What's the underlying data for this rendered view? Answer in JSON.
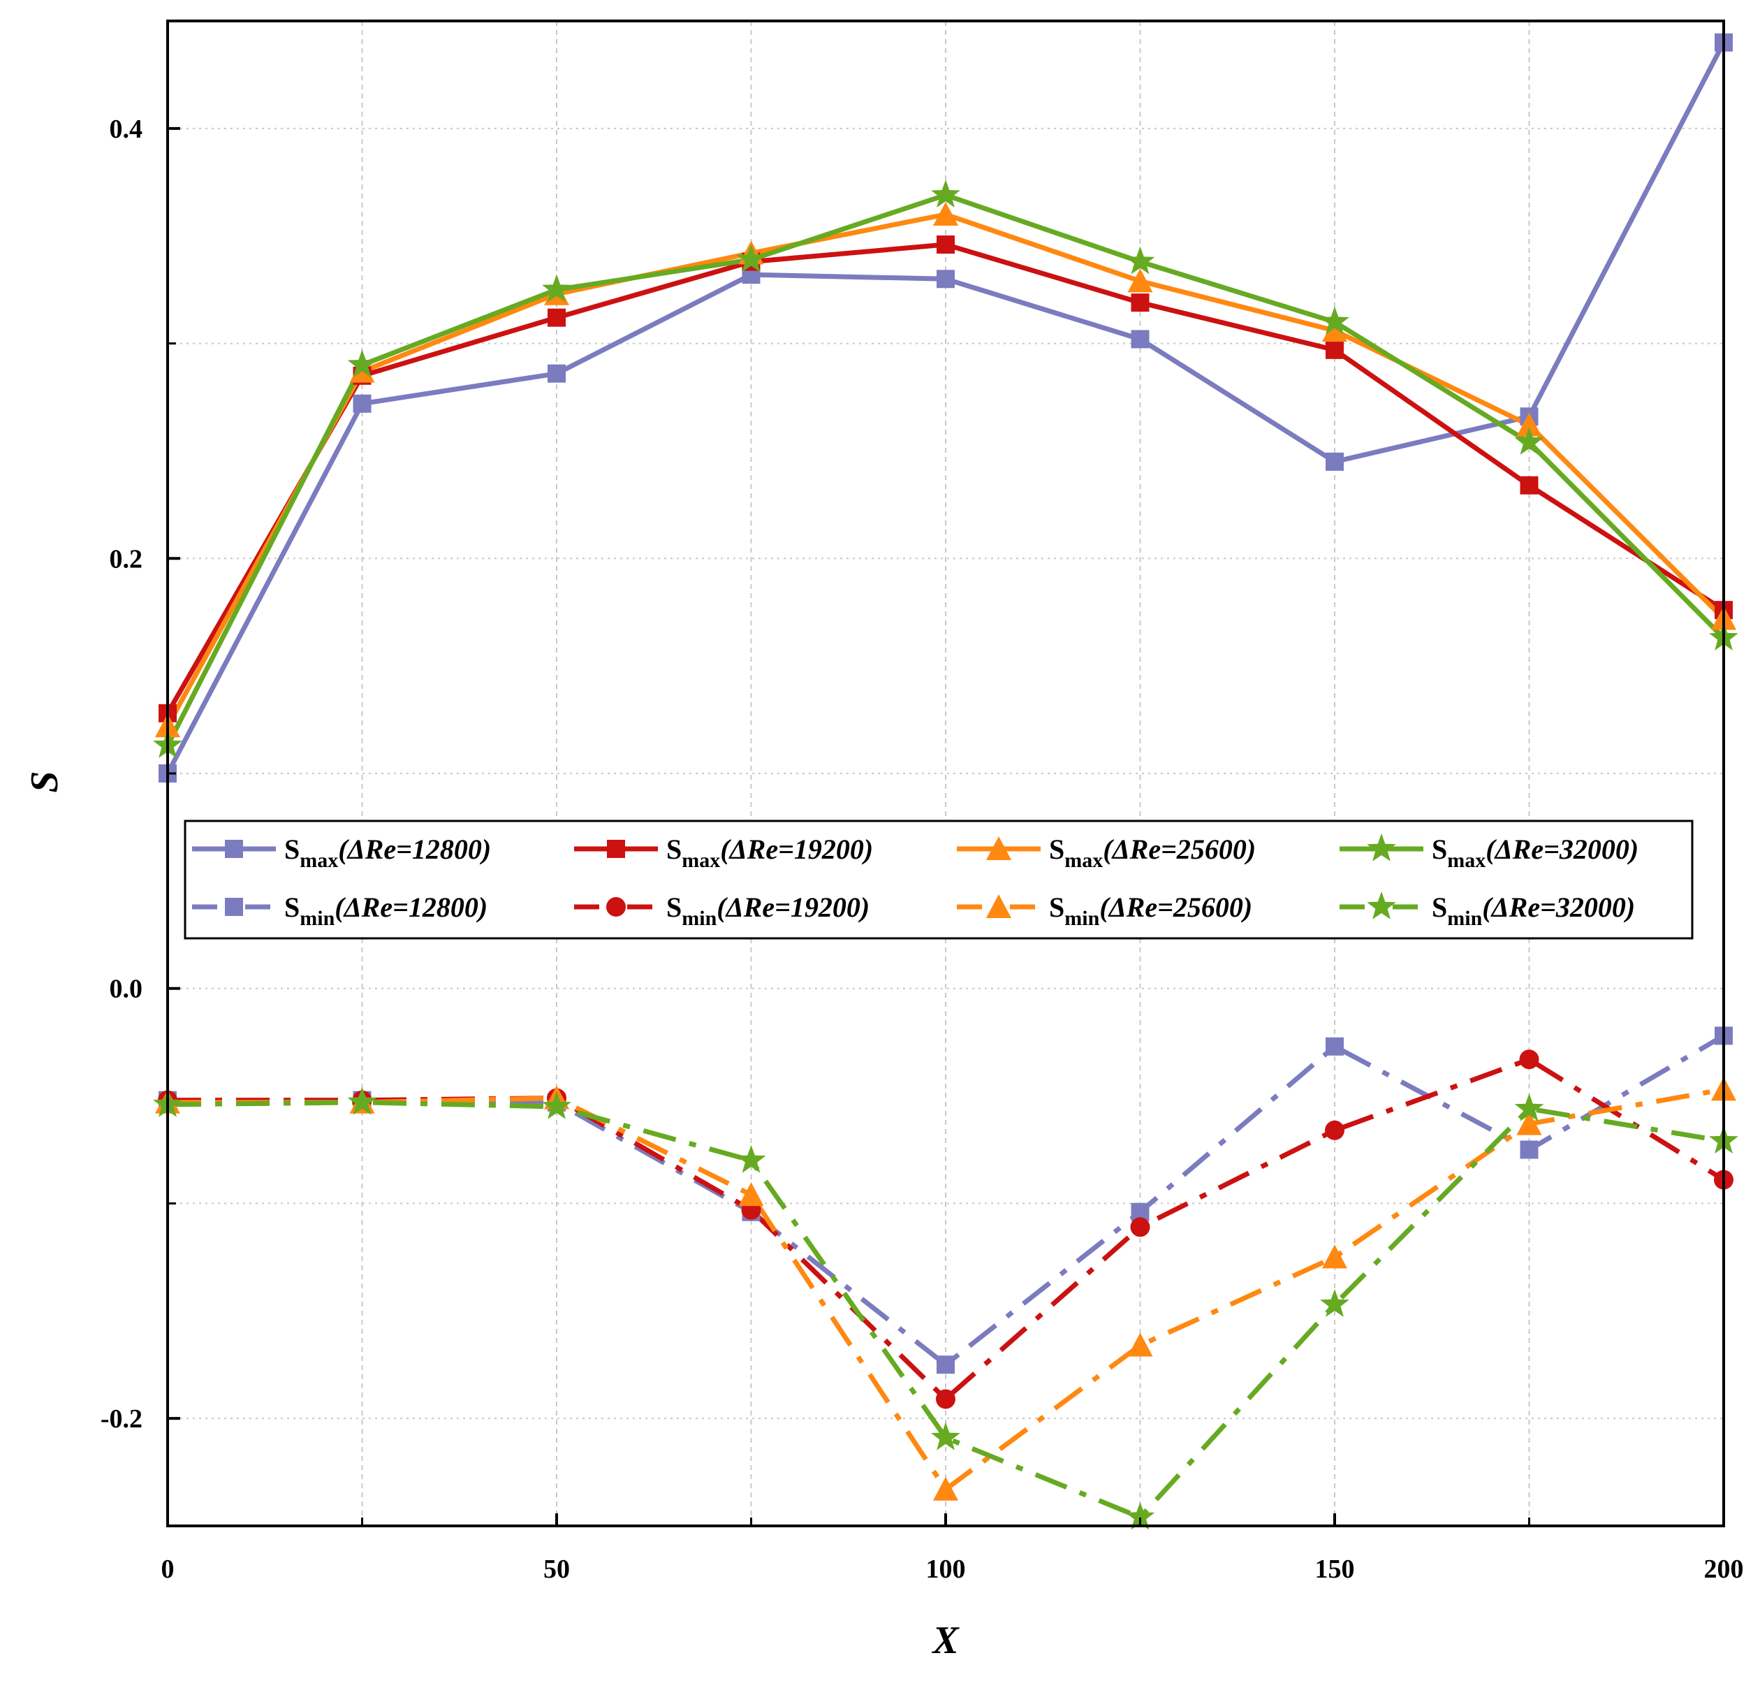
{
  "chart_data": {
    "type": "line",
    "title": "",
    "xlabel": "X",
    "ylabel": "S",
    "xlim": [
      0,
      200
    ],
    "ylim": [
      -0.25,
      0.45
    ],
    "x_ticks": [
      0,
      50,
      100,
      150,
      200
    ],
    "x_tick_labels": [
      "0",
      "50",
      "100",
      "150",
      "200"
    ],
    "x_minor_ticks": [
      25,
      75,
      125,
      175
    ],
    "y_ticks": [
      -0.2,
      0.0,
      0.2,
      0.4
    ],
    "y_tick_labels": [
      "-0.2",
      "0.0",
      "0.2",
      "0.4"
    ],
    "y_minor_ticks": [
      -0.1,
      0.1,
      0.3
    ],
    "grid": true,
    "legend_position": "center",
    "x": [
      0,
      25,
      50,
      75,
      100,
      125,
      150,
      175,
      200
    ],
    "series": [
      {
        "name": "Smax(ΔRe=12800)",
        "main": "S",
        "sub": "max",
        "rest": "(ΔRe=12800)",
        "color": "#7B7BC0",
        "marker": "square",
        "dash": "solid",
        "values": [
          0.1,
          0.272,
          0.286,
          0.332,
          0.33,
          0.302,
          0.245,
          0.266,
          0.44
        ]
      },
      {
        "name": "Smax(ΔRe=19200)",
        "main": "S",
        "sub": "max",
        "rest": "(ΔRe=19200)",
        "color": "#CC1111",
        "marker": "square",
        "dash": "solid",
        "values": [
          0.128,
          0.285,
          0.312,
          0.338,
          0.346,
          0.319,
          0.297,
          0.234,
          0.176
        ]
      },
      {
        "name": "Smax(ΔRe=25600)",
        "main": "S",
        "sub": "max",
        "rest": "(ΔRe=25600)",
        "color": "#FF8811",
        "marker": "triangle",
        "dash": "solid",
        "values": [
          0.122,
          0.287,
          0.323,
          0.342,
          0.36,
          0.329,
          0.306,
          0.262,
          0.172
        ]
      },
      {
        "name": "Smax(ΔRe=32000)",
        "main": "S",
        "sub": "max",
        "rest": "(ΔRe=32000)",
        "color": "#66AA22",
        "marker": "star",
        "dash": "solid",
        "values": [
          0.113,
          0.29,
          0.325,
          0.339,
          0.369,
          0.338,
          0.31,
          0.254,
          0.163
        ]
      },
      {
        "name": "Smin(ΔRe=12800)",
        "main": "S",
        "sub": "min",
        "rest": "(ΔRe=12800)",
        "color": "#7B7BC0",
        "marker": "square",
        "dash": "dashdot",
        "values": [
          -0.052,
          -0.052,
          -0.053,
          -0.104,
          -0.175,
          -0.104,
          -0.027,
          -0.075,
          -0.022
        ]
      },
      {
        "name": "Smin(ΔRe=19200)",
        "main": "S",
        "sub": "min",
        "rest": "(ΔRe=19200)",
        "color": "#CC1111",
        "marker": "circle",
        "dash": "dashdot",
        "values": [
          -0.052,
          -0.052,
          -0.051,
          -0.103,
          -0.191,
          -0.111,
          -0.066,
          -0.033,
          -0.089
        ]
      },
      {
        "name": "Smin(ΔRe=25600)",
        "main": "S",
        "sub": "min",
        "rest": "(ΔRe=25600)",
        "color": "#FF8811",
        "marker": "triangle",
        "dash": "dashdot",
        "values": [
          -0.053,
          -0.053,
          -0.051,
          -0.096,
          -0.233,
          -0.166,
          -0.125,
          -0.063,
          -0.047
        ]
      },
      {
        "name": "Smin(ΔRe=32000)",
        "main": "S",
        "sub": "min",
        "rest": "(ΔRe=32000)",
        "color": "#66AA22",
        "marker": "star",
        "dash": "dashdot",
        "values": [
          -0.054,
          -0.053,
          -0.055,
          -0.08,
          -0.209,
          -0.246,
          -0.147,
          -0.056,
          -0.071
        ]
      }
    ]
  }
}
